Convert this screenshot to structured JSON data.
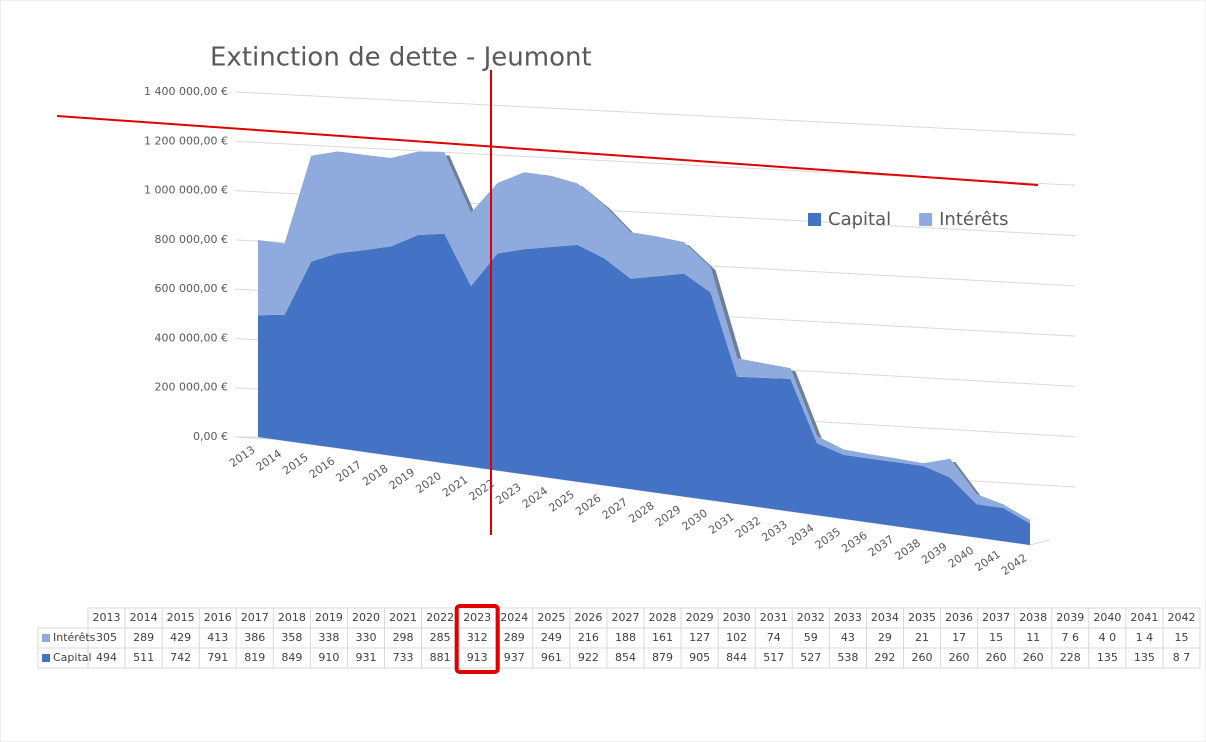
{
  "chart_data": {
    "type": "area",
    "title": "Extinction de dette - Jeumont",
    "categories": [
      "2013",
      "2014",
      "2015",
      "2016",
      "2017",
      "2018",
      "2019",
      "2020",
      "2021",
      "2022",
      "2023",
      "2024",
      "2025",
      "2026",
      "2027",
      "2028",
      "2029",
      "2030",
      "2031",
      "2032",
      "2033",
      "2034",
      "2035",
      "2036",
      "2037",
      "2038",
      "2039",
      "2040",
      "2041",
      "2042"
    ],
    "series": [
      {
        "name": "Capital",
        "color": "#4472c4",
        "values": [
          494000,
          511000,
          742000,
          791000,
          819000,
          849000,
          910000,
          931000,
          733000,
          881000,
          913000,
          937000,
          961000,
          922000,
          854000,
          879000,
          905000,
          844000,
          517000,
          527000,
          538000,
          292000,
          260000,
          260000,
          260000,
          260000,
          228000,
          135000,
          135000,
          87000
        ],
        "value_labels": [
          "494",
          "511",
          "742",
          "791",
          "819",
          "849",
          "910",
          "931",
          "733",
          "881",
          "913",
          "937",
          "961",
          "922",
          "854",
          "879",
          "905",
          "844",
          "517",
          "527",
          "538",
          "292",
          "260",
          "260",
          "260",
          "260",
          "228",
          "135",
          "135",
          "8 7"
        ]
      },
      {
        "name": "Intérêts",
        "color": "#8faadc",
        "values": [
          305000,
          289000,
          429000,
          413000,
          386000,
          358000,
          338000,
          330000,
          298000,
          285000,
          312000,
          289000,
          249000,
          216000,
          188000,
          161000,
          127000,
          102000,
          74000,
          59000,
          43000,
          29000,
          21000,
          17000,
          15000,
          11000,
          76000,
          40000,
          14000,
          15000
        ],
        "value_labels": [
          "305",
          "289",
          "429",
          "413",
          "386",
          "358",
          "338",
          "330",
          "298",
          "285",
          "312",
          "289",
          "249",
          "216",
          "188",
          "161",
          "127",
          "102",
          "74",
          "59",
          "43",
          "29",
          "21",
          "17",
          "15",
          "11",
          "7 6",
          "4 0",
          "1 4",
          "15"
        ]
      }
    ],
    "stacked": true,
    "ylim": [
      0,
      1400000
    ],
    "yticks": [
      {
        "value": 0,
        "label": "0,00 €"
      },
      {
        "value": 200000,
        "label": "200 000,00 €"
      },
      {
        "value": 400000,
        "label": "400 000,00 €"
      },
      {
        "value": 600000,
        "label": "600 000,00 €"
      },
      {
        "value": 800000,
        "label": "800 000,00 €"
      },
      {
        "value": 1000000,
        "label": "1 000 000,00 €"
      },
      {
        "value": 1200000,
        "label": "1 200 000,00 €"
      },
      {
        "value": 1400000,
        "label": "1 400 000,00 €"
      }
    ],
    "grid": true,
    "legend": "right"
  }
}
